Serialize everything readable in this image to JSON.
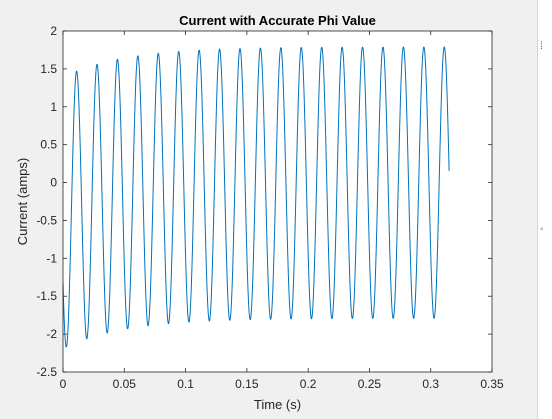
{
  "chart_data": {
    "type": "line",
    "title": "Current with Accurate Phi Value",
    "xlabel": "Time (s)",
    "ylabel": "Current (amps)",
    "xlim": [
      0,
      0.35
    ],
    "ylim": [
      -2.5,
      2
    ],
    "x_ticks": [
      "0",
      "0.05",
      "0.1",
      "0.15",
      "0.2",
      "0.25",
      "0.3",
      "0.35"
    ],
    "y_ticks": [
      "-2.5",
      "-2",
      "-1.5",
      "-1",
      "-0.5",
      "0",
      "0.5",
      "1",
      "1.5",
      "2"
    ],
    "grid": false,
    "series": [
      {
        "color": "#0072bd",
        "signal": {
          "frequency_hz": 60,
          "duration_s": 0.315,
          "amplitude_steady": 1.79,
          "offset_initial": -0.4,
          "decay_time_constant_s": 0.05,
          "phase_rad": -2.6
        }
      }
    ]
  },
  "window": {
    "background": "#f0f0f0",
    "axes_background": "#ffffff",
    "axes_color": "#262626"
  }
}
